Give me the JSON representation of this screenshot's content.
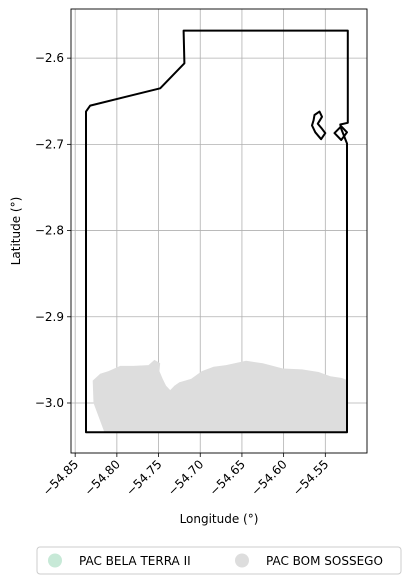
{
  "map": {
    "xlabel": "Longitude (°)",
    "ylabel": "Latitude (°)",
    "xlim": [
      -54.855,
      -54.5
    ],
    "ylim": [
      -3.058,
      -2.543
    ],
    "grid": true,
    "x_ticks": [
      -54.85,
      -54.8,
      -54.75,
      -54.7,
      -54.65,
      -54.6,
      -54.55
    ],
    "x_tick_labels": [
      "−54.85",
      "−54.80",
      "−54.75",
      "−54.70",
      "−54.65",
      "−54.60",
      "−54.55"
    ],
    "y_ticks": [
      -2.6,
      -2.7,
      -2.8,
      -2.9,
      -3.0
    ],
    "y_tick_labels": [
      "−2.6",
      "−2.7",
      "−2.8",
      "−2.9",
      "−3.0"
    ]
  },
  "legend": {
    "placement": "bottom-center",
    "items": [
      {
        "label": "PAC BELA TERRA II",
        "color": "#c7e9d7"
      },
      {
        "label": "PAC BOM SOSSEGO",
        "color": "#dddddd"
      }
    ]
  },
  "chart_data": {
    "type": "map",
    "xlabel": "Longitude (°)",
    "ylabel": "Latitude (°)",
    "xlim": [
      -54.855,
      -54.5
    ],
    "ylim": [
      -3.058,
      -2.543
    ],
    "grid": true,
    "legend_placement": "bottom-center",
    "series": [
      {
        "name": "PAC BOM SOSSEGO",
        "kind": "filled-area",
        "color": "#dddddd",
        "points": [
          [
            -54.829,
            -2.974
          ],
          [
            -54.82,
            -2.966
          ],
          [
            -54.81,
            -2.963
          ],
          [
            -54.803,
            -2.96
          ],
          [
            -54.796,
            -2.957
          ],
          [
            -54.78,
            -2.957
          ],
          [
            -54.762,
            -2.956
          ],
          [
            -54.755,
            -2.95
          ],
          [
            -54.748,
            -2.954
          ],
          [
            -54.749,
            -2.963
          ],
          [
            -54.745,
            -2.972
          ],
          [
            -54.741,
            -2.98
          ],
          [
            -54.736,
            -2.985
          ],
          [
            -54.731,
            -2.98
          ],
          [
            -54.725,
            -2.976
          ],
          [
            -54.711,
            -2.972
          ],
          [
            -54.698,
            -2.963
          ],
          [
            -54.684,
            -2.958
          ],
          [
            -54.669,
            -2.956
          ],
          [
            -54.645,
            -2.951
          ],
          [
            -54.625,
            -2.954
          ],
          [
            -54.601,
            -2.96
          ],
          [
            -54.578,
            -2.961
          ],
          [
            -54.558,
            -2.964
          ],
          [
            -54.544,
            -2.969
          ],
          [
            -54.53,
            -2.971
          ],
          [
            -54.525,
            -2.973
          ],
          [
            -54.525,
            -3.034
          ],
          [
            -54.815,
            -3.034
          ],
          [
            -54.828,
            -3.0
          ]
        ]
      },
      {
        "name": "boundary",
        "kind": "outline",
        "color": "#000000",
        "points": [
          [
            -54.837,
            -3.034
          ],
          [
            -54.524,
            -3.034
          ],
          [
            -54.524,
            -2.699
          ],
          [
            -54.531,
            -2.682
          ],
          [
            -54.532,
            -2.677
          ],
          [
            -54.523,
            -2.675
          ],
          [
            -54.523,
            -2.568
          ],
          [
            -54.72,
            -2.568
          ],
          [
            -54.719,
            -2.606
          ],
          [
            -54.748,
            -2.635
          ],
          [
            -54.832,
            -2.655
          ],
          [
            -54.837,
            -2.662
          ]
        ]
      },
      {
        "name": "boundary-loop",
        "kind": "outline",
        "color": "#000000",
        "points": [
          [
            -54.524,
            -2.686
          ],
          [
            -54.531,
            -2.695
          ],
          [
            -54.539,
            -2.687
          ],
          [
            -54.531,
            -2.679
          ]
        ]
      },
      {
        "name": "parcel",
        "kind": "outline",
        "color": "#000000",
        "points": [
          [
            -54.563,
            -2.666
          ],
          [
            -54.557,
            -2.662
          ],
          [
            -54.554,
            -2.668
          ],
          [
            -54.559,
            -2.676
          ],
          [
            -54.554,
            -2.682
          ],
          [
            -54.55,
            -2.687
          ],
          [
            -54.555,
            -2.694
          ],
          [
            -54.562,
            -2.686
          ],
          [
            -54.566,
            -2.678
          ],
          [
            -54.564,
            -2.672
          ]
        ]
      }
    ]
  }
}
